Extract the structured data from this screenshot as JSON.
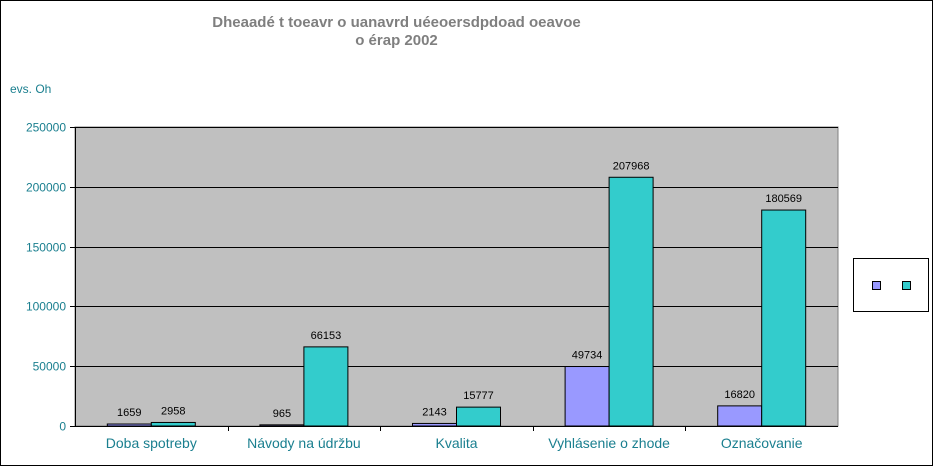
{
  "chart_data": {
    "type": "bar",
    "title_line1": "Dheaadé t toeavr o uanavrd uéeoersdpdoad oeavoe",
    "title_line2": "o érap 2002",
    "ylabel": "evs. Oh",
    "categories": [
      "Doba spotreby",
      "Návody na údržbu",
      "Kvalita",
      "Vyhlásenie o zhode",
      "Označovanie"
    ],
    "series": [
      {
        "values": [
          1659,
          965,
          2143,
          49734,
          16820
        ],
        "color": "#9999ff"
      },
      {
        "values": [
          2958,
          66153,
          15777,
          207968,
          180569
        ],
        "color": "#33cccc"
      }
    ],
    "ylim": [
      0,
      250000
    ],
    "yticks": [
      0,
      50000,
      100000,
      150000,
      200000,
      250000
    ],
    "grid": true,
    "plot_background": "#c0c0c0",
    "legend_position": "right"
  }
}
